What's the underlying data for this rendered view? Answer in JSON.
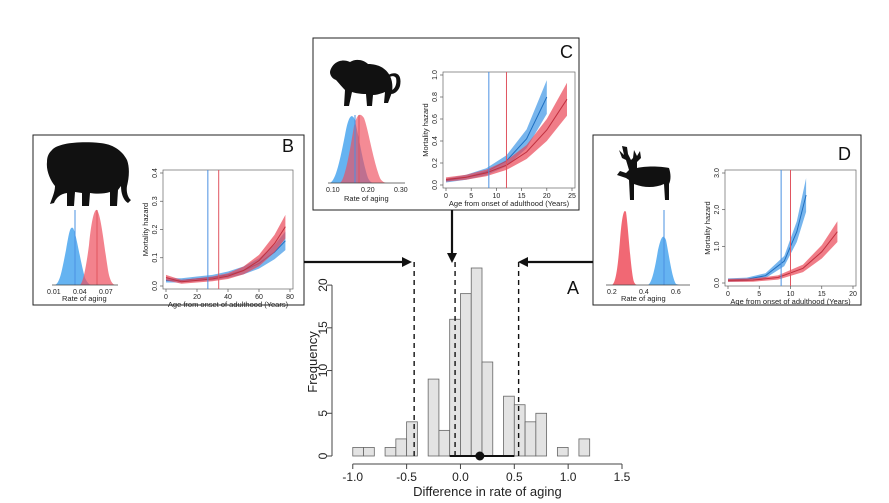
{
  "chart_data": [
    {
      "panel": "A",
      "type": "bar",
      "xlabel": "Difference in rate of aging",
      "ylabel": "Frequency",
      "xlim": [
        -1.1,
        1.5
      ],
      "ylim": [
        0,
        22
      ],
      "xticks": [
        "-1.0",
        "-0.5",
        "0.0",
        "0.5",
        "1.0",
        "1.5"
      ],
      "yticks": [
        "0",
        "5",
        "10",
        "15",
        "20"
      ],
      "bin_edges": [
        -1.0,
        -0.9,
        -0.8,
        -0.7,
        -0.6,
        -0.5,
        -0.4,
        -0.3,
        -0.2,
        -0.1,
        0.0,
        0.1,
        0.2,
        0.3,
        0.4,
        0.5,
        0.6,
        0.7,
        0.8,
        0.9,
        1.0,
        1.1,
        1.2,
        1.3,
        1.4
      ],
      "counts": [
        1,
        1,
        0,
        1,
        2,
        4,
        0,
        9,
        3,
        16,
        19,
        22,
        11,
        0,
        7,
        6,
        4,
        5,
        0,
        1,
        0,
        2,
        0,
        0
      ],
      "dashed_lines": [
        -0.43,
        -0.05,
        0.54
      ],
      "mean_point": 0.18,
      "mean_interval": [
        -0.1,
        0.5
      ]
    },
    {
      "panel": "B",
      "type": "line",
      "xlabel": "Age from onset of adulthood (Years)",
      "ylabel": "Mortality hazard",
      "xlim": [
        0,
        80
      ],
      "ylim": [
        0,
        0.4
      ],
      "xticks": [
        "0",
        "20",
        "40",
        "60",
        "80"
      ],
      "yticks": [
        "0.0",
        "0.1",
        "0.2",
        "0.3",
        "0.4"
      ],
      "vlines": [
        {
          "color": "#4a90e2",
          "x": 27
        },
        {
          "color": "#e05560",
          "x": 34
        }
      ],
      "density_xlabel": "Rate of aging",
      "density_ticks": [
        "0.01",
        "0.04",
        "0.07"
      ],
      "series": [
        {
          "name": "blue",
          "x": [
            0,
            10,
            20,
            30,
            40,
            50,
            60,
            70,
            77
          ],
          "y": [
            0.02,
            0.02,
            0.025,
            0.03,
            0.04,
            0.055,
            0.08,
            0.12,
            0.16
          ]
        },
        {
          "name": "red",
          "x": [
            0,
            10,
            20,
            30,
            40,
            50,
            60,
            70,
            77
          ],
          "y": [
            0.03,
            0.015,
            0.02,
            0.025,
            0.035,
            0.055,
            0.09,
            0.15,
            0.21
          ]
        }
      ]
    },
    {
      "panel": "C",
      "type": "line",
      "xlabel": "Age from onset of adulthood (Years)",
      "ylabel": "Mortality hazard",
      "xlim": [
        0,
        25
      ],
      "ylim": [
        0,
        1.0
      ],
      "xticks": [
        "0",
        "5",
        "10",
        "15",
        "20",
        "25"
      ],
      "yticks": [
        "0.0",
        "0.2",
        "0.4",
        "0.6",
        "0.8",
        "1.0"
      ],
      "vlines": [
        {
          "color": "#4a90e2",
          "x": 8.5
        },
        {
          "color": "#e05560",
          "x": 12
        }
      ],
      "density_xlabel": "Rate of aging",
      "density_ticks": [
        "0.10",
        "0.20",
        "0.30"
      ],
      "series": [
        {
          "name": "blue",
          "x": [
            0,
            4,
            8,
            12,
            16,
            20
          ],
          "y": [
            0.04,
            0.07,
            0.12,
            0.22,
            0.42,
            0.8
          ]
        },
        {
          "name": "red",
          "x": [
            0,
            4,
            8,
            12,
            16,
            20,
            24
          ],
          "y": [
            0.05,
            0.07,
            0.11,
            0.18,
            0.3,
            0.5,
            0.78
          ]
        }
      ]
    },
    {
      "panel": "D",
      "type": "line",
      "xlabel": "Age from onset of adulthood (Years)",
      "ylabel": "Mortality hazard",
      "xlim": [
        0,
        20
      ],
      "ylim": [
        0,
        3.0
      ],
      "xticks": [
        "0",
        "5",
        "10",
        "15",
        "20"
      ],
      "yticks": [
        "0.0",
        "1.0",
        "2.0",
        "3.0"
      ],
      "vlines": [
        {
          "color": "#4a90e2",
          "x": 8.5
        },
        {
          "color": "#e05560",
          "x": 10
        }
      ],
      "density_xlabel": "Rate of aging",
      "density_ticks": [
        "0.2",
        "0.4",
        "0.6"
      ],
      "series": [
        {
          "name": "blue",
          "x": [
            0,
            3,
            6,
            9,
            11,
            12.5
          ],
          "y": [
            0.08,
            0.1,
            0.2,
            0.6,
            1.4,
            2.4
          ]
        },
        {
          "name": "red",
          "x": [
            0,
            4,
            8,
            12,
            15,
            17.5
          ],
          "y": [
            0.07,
            0.08,
            0.15,
            0.4,
            0.85,
            1.4
          ]
        }
      ]
    }
  ]
}
